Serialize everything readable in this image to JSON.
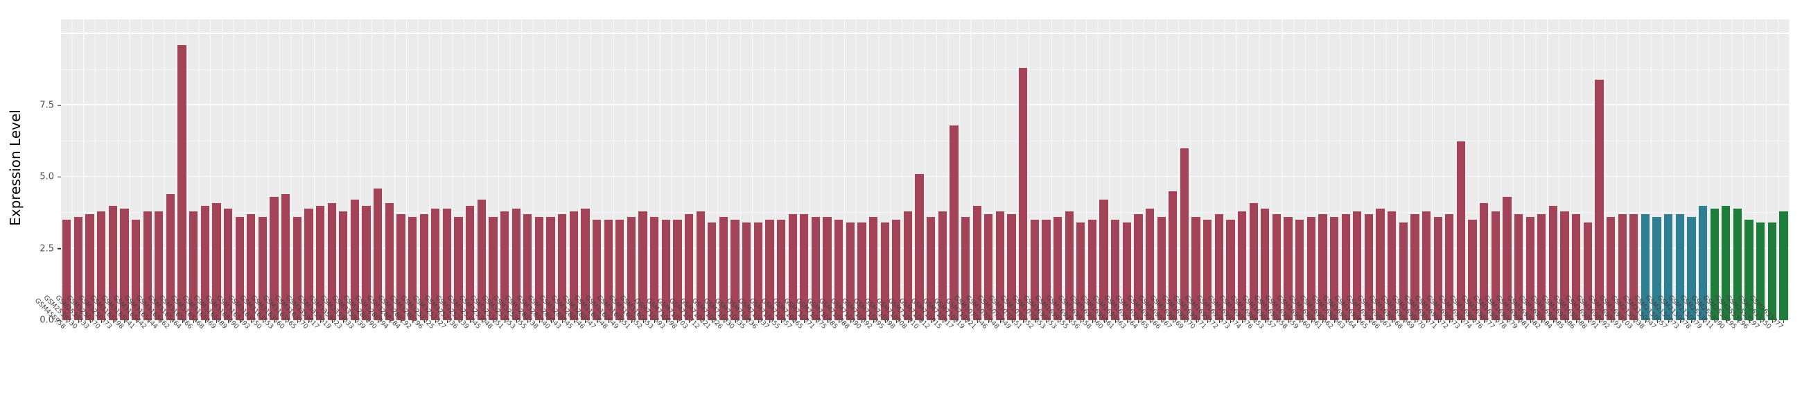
{
  "colors": {
    "page_bg": "#ffffff",
    "panel_bg": "#ebebeb",
    "grid_major": "#ffffff",
    "axis_text": "#4d4d4d",
    "title_text": "#000000",
    "bar_red": "#a24357",
    "bar_teal": "#2d7f91",
    "bar_green": "#1f7d3c"
  },
  "chart_data": {
    "type": "bar",
    "title": "",
    "xlabel": "",
    "ylabel": "Expression Level",
    "ylim": [
      0,
      10.5
    ],
    "grid": true,
    "legend_position": "none",
    "yticks": [
      0,
      2.5,
      5,
      7.5
    ],
    "ytick_labels": [
      "0.0",
      "2.5",
      "5.0",
      "7.5"
    ],
    "ygrid_major": [
      0,
      2.5,
      5,
      7.5,
      10
    ],
    "ygrid_minor": [
      1.25,
      3.75,
      6.25,
      8.75
    ],
    "groups": [
      {
        "name": "group-1",
        "color": "#a24357",
        "start": 0,
        "end": 136
      },
      {
        "name": "group-2",
        "color": "#2d7f91",
        "start": 137,
        "end": 142
      },
      {
        "name": "group-3",
        "color": "#1f7d3c",
        "start": 143,
        "end": 149
      }
    ],
    "categories": [
      "GSM455958",
      "GSM2539530",
      "GSM2539533",
      "GSM3250370",
      "GSM3250373",
      "GSM3165498",
      "GSM3165441",
      "GSM3165442",
      "GSM3165444",
      "GSM3165462",
      "GSM3165464",
      "GSM3165466",
      "GSM3165468",
      "GSM3165469",
      "GSM3165489",
      "GSM3165490",
      "GSM3165493",
      "GSM3163550",
      "GSM3163553",
      "GSM3163560",
      "GSM3163565",
      "GSM3163570",
      "GSM3359617",
      "GSM3359619",
      "GSM3359623",
      "GSM3359633",
      "GSM3359639",
      "GSM3286990",
      "GSM3286994",
      "GSM3288284",
      "GSM3288292",
      "GSM3288296",
      "GSM3252325",
      "GSM3252327",
      "GSM3252336",
      "GSM3252339",
      "GSM3253045",
      "GSM3253048",
      "GSM3253051",
      "GSM3253053",
      "GSM3253055",
      "GSM3288538",
      "GSM3288540",
      "GSM3288543",
      "GSM3288545",
      "GSM3288546",
      "GSM3288547",
      "GSM3160648",
      "GSM3160649",
      "GSM3160651",
      "GSM3160652",
      "GSM3160653",
      "GSM710693",
      "GSM710698",
      "GSM710703",
      "GSM710712",
      "GSM710821",
      "GSM710826",
      "GSM710830",
      "GSM710835",
      "GSM710836",
      "GSM710837",
      "GSM710855",
      "GSM710857",
      "GSM710865",
      "GSM710871",
      "GSM710875",
      "GSM710885",
      "GSM710888",
      "GSM710890",
      "GSM710892",
      "GSM710895",
      "GSM710898",
      "GSM710908",
      "GSM710910",
      "GSM710912",
      "GSM710915",
      "GSM710917",
      "GSM710919",
      "GSM710921",
      "GSM1070646",
      "GSM1070648",
      "GSM1070649",
      "GSM1070651",
      "GSM1070652",
      "GSM1070653",
      "GSM1699553",
      "GSM1699555",
      "GSM1699556",
      "GSM1699558",
      "GSM1699560",
      "GSM1699561",
      "GSM1699563",
      "GSM1699564",
      "GSM1699565",
      "GSM1699566",
      "GSM1699567",
      "GSM1699569",
      "GSM1699570",
      "GSM1699571",
      "GSM1699572",
      "GSM1699573",
      "GSM1699574",
      "GSM1699576",
      "GSM1698653",
      "GSM1698657",
      "GSM1698658",
      "GSM1698659",
      "GSM1698660",
      "GSM1698661",
      "GSM1698662",
      "GSM1698663",
      "GSM1698664",
      "GSM1698665",
      "GSM1698666",
      "GSM1698667",
      "GSM1698668",
      "GSM1698669",
      "GSM1698670",
      "GSM1698671",
      "GSM1698672",
      "GSM1698673",
      "GSM1698674",
      "GSM1698676",
      "GSM1698677",
      "GSM1698678",
      "GSM1698679",
      "GSM1698681",
      "GSM1698682",
      "GSM1698684",
      "GSM1698685",
      "GSM1698686",
      "GSM1698688",
      "GSM1698691",
      "GSM1698692",
      "GSM1698693",
      "GSM1698703",
      "GSM2150038",
      "GSM2150047",
      "GSM2150057",
      "GSM2150073",
      "GSM2150078",
      "GSM2150079",
      "GSM2553611",
      "GSM2553390",
      "GSM2553295",
      "GSM2553296",
      "GSM2553297",
      "GSM2633350",
      "GSM2633377"
    ],
    "values": [
      3.5,
      3.6,
      3.7,
      3.8,
      4.0,
      3.9,
      3.5,
      3.8,
      3.8,
      4.4,
      9.6,
      3.8,
      4.0,
      4.1,
      3.9,
      3.6,
      3.7,
      3.6,
      4.3,
      4.4,
      3.6,
      3.9,
      4.0,
      4.1,
      3.8,
      4.2,
      4.0,
      4.6,
      4.1,
      3.7,
      3.6,
      3.7,
      3.9,
      3.9,
      3.6,
      4.0,
      4.2,
      3.6,
      3.8,
      3.9,
      3.7,
      3.6,
      3.6,
      3.7,
      3.8,
      3.9,
      3.5,
      3.5,
      3.5,
      3.6,
      3.8,
      3.6,
      3.5,
      3.5,
      3.7,
      3.8,
      3.4,
      3.6,
      3.5,
      3.4,
      3.4,
      3.5,
      3.5,
      3.7,
      3.7,
      3.6,
      3.6,
      3.5,
      3.4,
      3.4,
      3.6,
      3.4,
      3.5,
      3.8,
      5.1,
      3.6,
      3.8,
      6.8,
      3.6,
      4.0,
      3.7,
      3.8,
      3.7,
      8.8,
      3.5,
      3.5,
      3.6,
      3.8,
      3.4,
      3.5,
      4.2,
      3.5,
      3.4,
      3.7,
      3.9,
      3.6,
      4.5,
      6.0,
      3.6,
      3.5,
      3.7,
      3.5,
      3.8,
      4.1,
      3.9,
      3.7,
      3.6,
      3.5,
      3.6,
      3.7,
      3.6,
      3.7,
      3.8,
      3.7,
      3.9,
      3.8,
      3.4,
      3.7,
      3.8,
      3.6,
      3.7,
      6.25,
      3.5,
      4.1,
      3.8,
      4.3,
      3.7,
      3.6,
      3.7,
      4.0,
      3.8,
      3.7,
      3.4,
      8.4,
      3.6,
      3.7,
      3.7,
      3.7,
      3.6,
      3.7,
      3.7,
      3.6,
      4.0,
      3.9,
      4.0,
      3.9,
      3.5,
      3.4,
      3.4,
      3.8
    ]
  }
}
